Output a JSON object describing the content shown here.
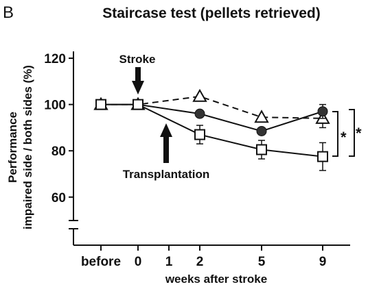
{
  "panel_label": "B",
  "chart_data": {
    "type": "line",
    "title": "Staircase test (pellets retrieved)",
    "xlabel": "weeks after stroke",
    "ylabel_lines": [
      "Performance",
      "impaired side / both sides (%)"
    ],
    "x_tick_labels": [
      "before",
      "0",
      "1",
      "2",
      "5",
      "9"
    ],
    "y_ticks": [
      60,
      80,
      100,
      120
    ],
    "ylim": [
      50,
      120
    ],
    "y_axis_break": true,
    "grid": false,
    "series": [
      {
        "marker": "triangle-open",
        "line_style": "dashed",
        "points": [
          {
            "x": "before",
            "y": 100
          },
          {
            "x": "0",
            "y": 100
          },
          {
            "x": "2",
            "y": 103.5
          },
          {
            "x": "5",
            "y": 94.5
          },
          {
            "x": "9",
            "y": 94,
            "err": 4
          }
        ]
      },
      {
        "marker": "circle-filled",
        "line_style": "solid",
        "points": [
          {
            "x": "before",
            "y": 100
          },
          {
            "x": "0",
            "y": 100
          },
          {
            "x": "2",
            "y": 96
          },
          {
            "x": "5",
            "y": 88.5
          },
          {
            "x": "9",
            "y": 97,
            "err": 3
          }
        ]
      },
      {
        "marker": "square-open",
        "line_style": "solid",
        "points": [
          {
            "x": "before",
            "y": 100
          },
          {
            "x": "0",
            "y": 100
          },
          {
            "x": "2",
            "y": 87,
            "err": 4
          },
          {
            "x": "5",
            "y": 80.5,
            "err": 4
          },
          {
            "x": "9",
            "y": 77.5,
            "err": 6
          }
        ]
      }
    ],
    "annotations": {
      "stroke_label": "Stroke",
      "transplant_label": "Transplantation",
      "significance": [
        "*",
        "*"
      ]
    }
  }
}
